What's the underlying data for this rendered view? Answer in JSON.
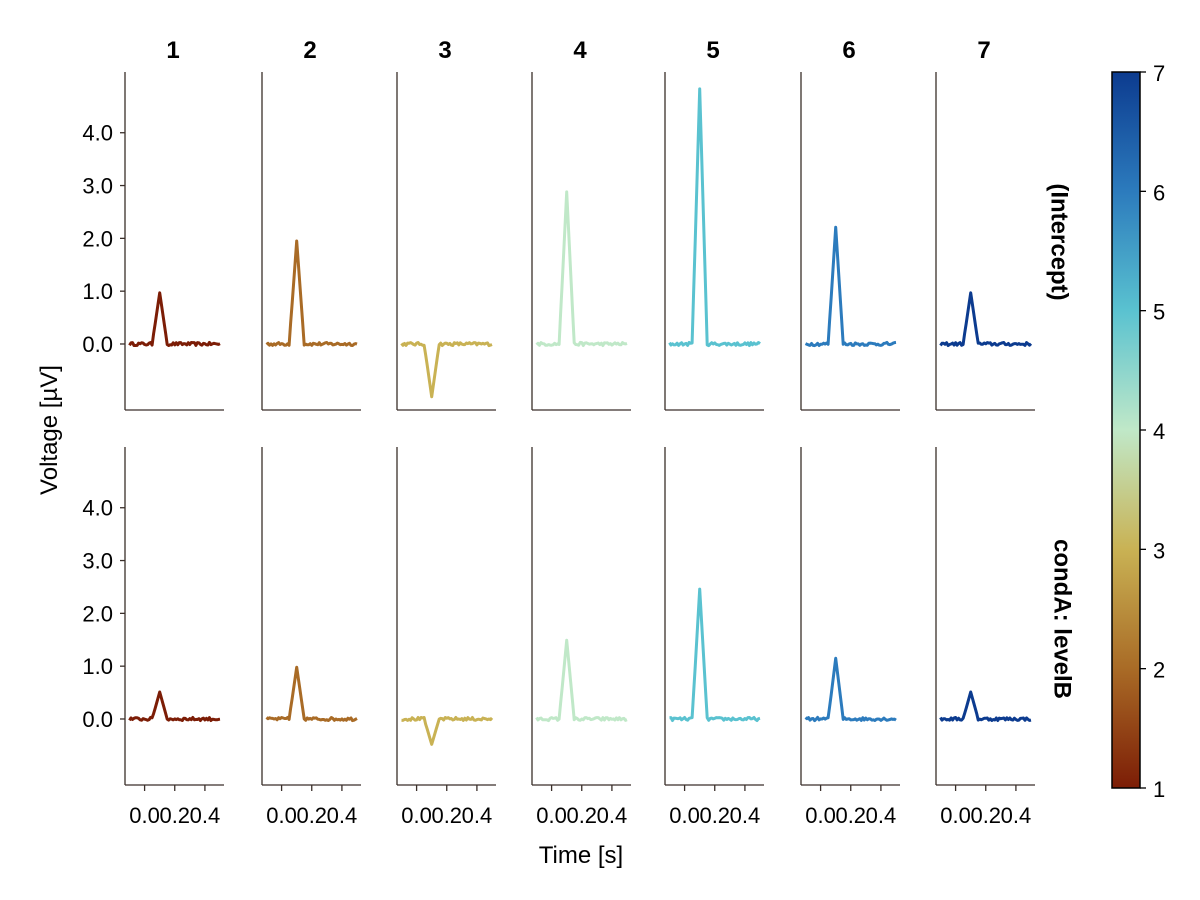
{
  "chart_data": {
    "type": "line",
    "panel_columns": [
      "1",
      "2",
      "3",
      "4",
      "5",
      "6",
      "7"
    ],
    "panel_rows": [
      "(Intercept)",
      "condA: levelB"
    ],
    "xlabel": "Time [s]",
    "ylabel": "Voltage [µV]",
    "x_ticks": [
      0.0,
      0.2,
      0.4
    ],
    "x_tick_labels": [
      "0.0",
      "0.2",
      "0.4"
    ],
    "xlim": [
      -0.13,
      0.52
    ],
    "y_ticks": [
      0.0,
      1.0,
      2.0,
      3.0,
      4.0
    ],
    "y_tick_labels": [
      "0.0",
      "1.0",
      "2.0",
      "3.0",
      "4.0"
    ],
    "ylim": [
      -1.25,
      5.15
    ],
    "grid": false,
    "waveform": {
      "onset_s": 0.05,
      "peak_s": 0.1,
      "offset_s": 0.15,
      "sample_step_s": 0.02,
      "x_start_s": -0.1,
      "x_end_s": 0.5
    },
    "peak_amplitudes": [
      [
        0.97,
        1.95,
        -1.0,
        2.88,
        4.83,
        2.21,
        0.97
      ],
      [
        0.51,
        0.98,
        -0.48,
        1.49,
        2.46,
        1.15,
        0.51
      ]
    ],
    "series_colors": [
      "#7c1d06",
      "#a96b26",
      "#c9b254",
      "#c0e8c8",
      "#5ac2d0",
      "#2c7bbd",
      "#0c3b8f"
    ],
    "colorbar": {
      "range": [
        1,
        7
      ],
      "ticks": [
        1,
        2,
        3,
        4,
        5,
        6,
        7
      ],
      "tick_labels": [
        "1",
        "2",
        "3",
        "4",
        "5",
        "6",
        "7"
      ],
      "colors": [
        "#7c1d06",
        "#a96b26",
        "#c9b254",
        "#c0e8c8",
        "#5ac2d0",
        "#2c7bbd",
        "#0c3b8f"
      ]
    }
  }
}
